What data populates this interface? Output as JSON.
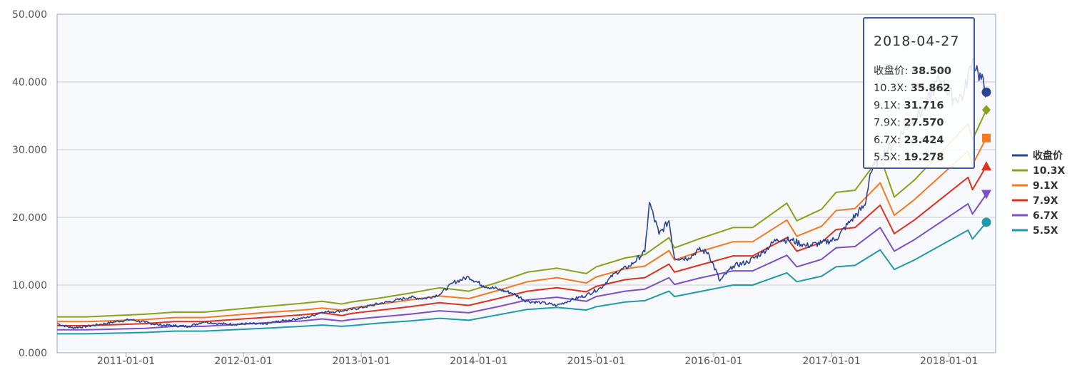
{
  "chart_data": {
    "type": "line",
    "title": "",
    "xlabel": "",
    "ylabel": "",
    "ylim": [
      0,
      50
    ],
    "x_range": [
      "2010-06-01",
      "2018-04-27"
    ],
    "y_ticks": [
      "0.000",
      "10.000",
      "20.000",
      "30.000",
      "40.000",
      "50.000"
    ],
    "x_ticks": [
      {
        "date": "2011-01-01",
        "label": "2011-01-01"
      },
      {
        "date": "2012-01-01",
        "label": "2012-01-01"
      },
      {
        "date": "2013-01-01",
        "label": "2013-01-01"
      },
      {
        "date": "2014-01-01",
        "label": "2014-01-01"
      },
      {
        "date": "2015-01-01",
        "label": "2015-01-01"
      },
      {
        "date": "2016-01-01",
        "label": "2016-01-01"
      },
      {
        "date": "2017-01-01",
        "label": "2017-01-01"
      },
      {
        "date": "2018-01-01",
        "label": "2018-01-01"
      }
    ],
    "grid": true,
    "legend_position": "right",
    "series": [
      {
        "name": "收盘价",
        "color": "#2f4395",
        "marker": "circle",
        "end_value": 38.5,
        "points": [
          [
            "2010-06-01",
            4.3
          ],
          [
            "2010-07-15",
            3.7
          ],
          [
            "2010-09-01",
            3.9
          ],
          [
            "2010-10-15",
            4.2
          ],
          [
            "2010-12-01",
            4.6
          ],
          [
            "2011-01-15",
            4.9
          ],
          [
            "2011-03-01",
            4.5
          ],
          [
            "2011-04-15",
            4.1
          ],
          [
            "2011-06-01",
            4.0
          ],
          [
            "2011-07-15",
            3.9
          ],
          [
            "2011-09-01",
            4.6
          ],
          [
            "2011-10-15",
            4.3
          ],
          [
            "2011-12-01",
            4.2
          ],
          [
            "2012-01-15",
            4.3
          ],
          [
            "2012-03-01",
            4.2
          ],
          [
            "2012-04-15",
            4.6
          ],
          [
            "2012-06-01",
            4.9
          ],
          [
            "2012-07-15",
            5.2
          ],
          [
            "2012-09-01",
            6.0
          ],
          [
            "2012-10-15",
            6.1
          ],
          [
            "2012-12-01",
            6.4
          ],
          [
            "2013-01-15",
            6.8
          ],
          [
            "2013-03-01",
            7.3
          ],
          [
            "2013-04-15",
            7.7
          ],
          [
            "2013-06-01",
            8.2
          ],
          [
            "2013-07-15",
            8.0
          ],
          [
            "2013-09-01",
            8.6
          ],
          [
            "2013-10-15",
            10.4
          ],
          [
            "2013-12-01",
            11.2
          ],
          [
            "2014-01-15",
            9.9
          ],
          [
            "2014-03-01",
            9.4
          ],
          [
            "2014-04-15",
            8.8
          ],
          [
            "2014-06-01",
            7.6
          ],
          [
            "2014-07-15",
            7.4
          ],
          [
            "2014-09-01",
            7.0
          ],
          [
            "2014-10-15",
            7.8
          ],
          [
            "2014-12-01",
            8.5
          ],
          [
            "2015-01-15",
            9.6
          ],
          [
            "2015-03-01",
            11.8
          ],
          [
            "2015-04-15",
            12.8
          ],
          [
            "2015-06-01",
            14.9
          ],
          [
            "2015-06-15",
            22.2
          ],
          [
            "2015-07-15",
            17.5
          ],
          [
            "2015-08-15",
            19.5
          ],
          [
            "2015-09-01",
            14.0
          ],
          [
            "2015-10-15",
            14.0
          ],
          [
            "2015-11-15",
            15.2
          ],
          [
            "2015-12-15",
            14.8
          ],
          [
            "2016-01-20",
            10.6
          ],
          [
            "2016-03-01",
            12.8
          ],
          [
            "2016-04-15",
            13.4
          ],
          [
            "2016-06-01",
            14.8
          ],
          [
            "2016-07-15",
            16.8
          ],
          [
            "2016-09-01",
            16.6
          ],
          [
            "2016-10-15",
            15.8
          ],
          [
            "2016-12-01",
            16.2
          ],
          [
            "2017-01-15",
            16.8
          ],
          [
            "2017-03-01",
            19.5
          ],
          [
            "2017-04-15",
            21.8
          ],
          [
            "2017-05-01",
            26.5
          ],
          [
            "2017-06-01",
            29.0
          ],
          [
            "2017-07-15",
            31.0
          ],
          [
            "2017-09-01",
            34.0
          ],
          [
            "2017-10-15",
            36.0
          ],
          [
            "2017-12-01",
            40.5
          ],
          [
            "2018-01-15",
            37.5
          ],
          [
            "2018-02-15",
            38.0
          ],
          [
            "2018-03-15",
            43.5
          ],
          [
            "2018-04-01",
            41.5
          ],
          [
            "2018-04-27",
            38.5
          ]
        ]
      },
      {
        "name": "10.3X",
        "color": "#86a319",
        "marker": "diamond",
        "end_value": 35.862,
        "points": [
          [
            "2010-06-01",
            5.3
          ],
          [
            "2010-09-01",
            5.3
          ],
          [
            "2011-03-01",
            5.7
          ],
          [
            "2011-06-01",
            6.0
          ],
          [
            "2011-09-01",
            6.0
          ],
          [
            "2012-03-01",
            6.8
          ],
          [
            "2012-07-01",
            7.3
          ],
          [
            "2012-09-01",
            7.6
          ],
          [
            "2012-11-01",
            7.2
          ],
          [
            "2012-12-01",
            7.5
          ],
          [
            "2013-03-01",
            8.1
          ],
          [
            "2013-06-01",
            8.8
          ],
          [
            "2013-09-01",
            9.6
          ],
          [
            "2013-12-01",
            9.1
          ],
          [
            "2014-03-01",
            10.4
          ],
          [
            "2014-06-01",
            11.9
          ],
          [
            "2014-09-01",
            12.5
          ],
          [
            "2014-12-01",
            11.7
          ],
          [
            "2015-01-01",
            12.7
          ],
          [
            "2015-04-01",
            14.0
          ],
          [
            "2015-06-01",
            14.5
          ],
          [
            "2015-08-15",
            17.0
          ],
          [
            "2015-09-01",
            15.5
          ],
          [
            "2015-11-15",
            16.8
          ],
          [
            "2016-03-01",
            18.5
          ],
          [
            "2016-05-01",
            18.5
          ],
          [
            "2016-08-15",
            22.1
          ],
          [
            "2016-09-15",
            19.5
          ],
          [
            "2016-12-01",
            21.2
          ],
          [
            "2017-01-15",
            23.7
          ],
          [
            "2017-03-15",
            24.0
          ],
          [
            "2017-06-01",
            29.0
          ],
          [
            "2017-07-15",
            23.0
          ],
          [
            "2017-09-15",
            25.5
          ],
          [
            "2018-03-01",
            33.8
          ],
          [
            "2018-03-15",
            31.5
          ],
          [
            "2018-04-27",
            35.862
          ]
        ]
      },
      {
        "name": "9.1X",
        "color": "#f7781e",
        "marker": "square",
        "end_value": 31.716,
        "points": [
          [
            "2010-06-01",
            4.6
          ],
          [
            "2010-09-01",
            4.6
          ],
          [
            "2011-03-01",
            4.9
          ],
          [
            "2011-06-01",
            5.2
          ],
          [
            "2011-09-01",
            5.2
          ],
          [
            "2012-03-01",
            5.9
          ],
          [
            "2012-07-01",
            6.3
          ],
          [
            "2012-09-01",
            6.6
          ],
          [
            "2012-11-01",
            6.3
          ],
          [
            "2012-12-01",
            6.6
          ],
          [
            "2013-03-01",
            7.2
          ],
          [
            "2013-06-01",
            7.8
          ],
          [
            "2013-09-01",
            8.4
          ],
          [
            "2013-12-01",
            8.0
          ],
          [
            "2014-03-01",
            9.2
          ],
          [
            "2014-06-01",
            10.5
          ],
          [
            "2014-09-01",
            11.1
          ],
          [
            "2014-12-01",
            10.3
          ],
          [
            "2015-01-01",
            11.2
          ],
          [
            "2015-04-01",
            12.4
          ],
          [
            "2015-06-01",
            12.8
          ],
          [
            "2015-08-15",
            15.1
          ],
          [
            "2015-09-01",
            13.7
          ],
          [
            "2015-11-15",
            14.9
          ],
          [
            "2016-03-01",
            16.4
          ],
          [
            "2016-05-01",
            16.4
          ],
          [
            "2016-08-15",
            19.6
          ],
          [
            "2016-09-15",
            17.2
          ],
          [
            "2016-12-01",
            18.7
          ],
          [
            "2017-01-15",
            21.0
          ],
          [
            "2017-03-15",
            21.3
          ],
          [
            "2017-06-01",
            25.1
          ],
          [
            "2017-07-15",
            20.3
          ],
          [
            "2017-09-15",
            22.6
          ],
          [
            "2018-03-01",
            29.8
          ],
          [
            "2018-03-15",
            27.8
          ],
          [
            "2018-04-27",
            31.716
          ]
        ]
      },
      {
        "name": "7.9X",
        "color": "#e0301e",
        "marker": "triangle",
        "end_value": 27.57,
        "points": [
          [
            "2010-06-01",
            4.0
          ],
          [
            "2010-09-01",
            4.0
          ],
          [
            "2011-03-01",
            4.3
          ],
          [
            "2011-06-01",
            4.6
          ],
          [
            "2011-09-01",
            4.6
          ],
          [
            "2012-03-01",
            5.2
          ],
          [
            "2012-07-01",
            5.6
          ],
          [
            "2012-09-01",
            5.9
          ],
          [
            "2012-11-01",
            5.5
          ],
          [
            "2012-12-01",
            5.8
          ],
          [
            "2013-03-01",
            6.3
          ],
          [
            "2013-06-01",
            6.8
          ],
          [
            "2013-09-01",
            7.4
          ],
          [
            "2013-12-01",
            7.0
          ],
          [
            "2014-03-01",
            8.0
          ],
          [
            "2014-06-01",
            9.1
          ],
          [
            "2014-09-01",
            9.6
          ],
          [
            "2014-12-01",
            9.0
          ],
          [
            "2015-01-01",
            9.8
          ],
          [
            "2015-04-01",
            10.8
          ],
          [
            "2015-06-01",
            11.1
          ],
          [
            "2015-08-15",
            13.1
          ],
          [
            "2015-09-01",
            11.9
          ],
          [
            "2015-11-15",
            12.9
          ],
          [
            "2016-03-01",
            14.3
          ],
          [
            "2016-05-01",
            14.3
          ],
          [
            "2016-08-15",
            17.0
          ],
          [
            "2016-09-15",
            15.0
          ],
          [
            "2016-12-01",
            16.3
          ],
          [
            "2017-01-15",
            18.2
          ],
          [
            "2017-03-15",
            18.5
          ],
          [
            "2017-06-01",
            21.8
          ],
          [
            "2017-07-15",
            17.6
          ],
          [
            "2017-09-15",
            19.6
          ],
          [
            "2018-03-01",
            25.9
          ],
          [
            "2018-03-15",
            24.1
          ],
          [
            "2018-04-27",
            27.57
          ]
        ]
      },
      {
        "name": "6.7X",
        "color": "#7b50c9",
        "marker": "triangle-down",
        "end_value": 23.424,
        "points": [
          [
            "2010-06-01",
            3.4
          ],
          [
            "2010-09-01",
            3.4
          ],
          [
            "2011-03-01",
            3.6
          ],
          [
            "2011-06-01",
            3.9
          ],
          [
            "2011-09-01",
            3.9
          ],
          [
            "2012-03-01",
            4.4
          ],
          [
            "2012-07-01",
            4.7
          ],
          [
            "2012-09-01",
            5.0
          ],
          [
            "2012-11-01",
            4.7
          ],
          [
            "2012-12-01",
            4.9
          ],
          [
            "2013-03-01",
            5.3
          ],
          [
            "2013-06-01",
            5.7
          ],
          [
            "2013-09-01",
            6.2
          ],
          [
            "2013-12-01",
            5.9
          ],
          [
            "2014-03-01",
            6.8
          ],
          [
            "2014-06-01",
            7.8
          ],
          [
            "2014-09-01",
            8.2
          ],
          [
            "2014-12-01",
            7.6
          ],
          [
            "2015-01-01",
            8.3
          ],
          [
            "2015-04-01",
            9.1
          ],
          [
            "2015-06-01",
            9.4
          ],
          [
            "2015-08-15",
            11.1
          ],
          [
            "2015-09-01",
            10.1
          ],
          [
            "2015-11-15",
            11.0
          ],
          [
            "2016-03-01",
            12.1
          ],
          [
            "2016-05-01",
            12.1
          ],
          [
            "2016-08-15",
            14.4
          ],
          [
            "2016-09-15",
            12.7
          ],
          [
            "2016-12-01",
            13.8
          ],
          [
            "2017-01-15",
            15.5
          ],
          [
            "2017-03-15",
            15.7
          ],
          [
            "2017-06-01",
            18.5
          ],
          [
            "2017-07-15",
            15.0
          ],
          [
            "2017-09-15",
            16.7
          ],
          [
            "2018-03-01",
            22.0
          ],
          [
            "2018-03-15",
            20.5
          ],
          [
            "2018-04-27",
            23.424
          ]
        ]
      },
      {
        "name": "5.5X",
        "color": "#1f9aab",
        "marker": "circle",
        "end_value": 19.278,
        "points": [
          [
            "2010-06-01",
            2.8
          ],
          [
            "2010-09-01",
            2.8
          ],
          [
            "2011-03-01",
            3.0
          ],
          [
            "2011-06-01",
            3.2
          ],
          [
            "2011-09-01",
            3.2
          ],
          [
            "2012-03-01",
            3.6
          ],
          [
            "2012-07-01",
            3.9
          ],
          [
            "2012-09-01",
            4.1
          ],
          [
            "2012-11-01",
            3.9
          ],
          [
            "2012-12-01",
            4.0
          ],
          [
            "2013-03-01",
            4.4
          ],
          [
            "2013-06-01",
            4.7
          ],
          [
            "2013-09-01",
            5.1
          ],
          [
            "2013-12-01",
            4.8
          ],
          [
            "2014-03-01",
            5.6
          ],
          [
            "2014-06-01",
            6.4
          ],
          [
            "2014-09-01",
            6.7
          ],
          [
            "2014-12-01",
            6.3
          ],
          [
            "2015-01-01",
            6.8
          ],
          [
            "2015-04-01",
            7.5
          ],
          [
            "2015-06-01",
            7.7
          ],
          [
            "2015-08-15",
            9.1
          ],
          [
            "2015-09-01",
            8.3
          ],
          [
            "2015-11-15",
            9.0
          ],
          [
            "2016-03-01",
            10.0
          ],
          [
            "2016-05-01",
            10.0
          ],
          [
            "2016-08-15",
            11.8
          ],
          [
            "2016-09-15",
            10.5
          ],
          [
            "2016-12-01",
            11.3
          ],
          [
            "2017-01-15",
            12.7
          ],
          [
            "2017-03-15",
            12.9
          ],
          [
            "2017-06-01",
            15.2
          ],
          [
            "2017-07-15",
            12.3
          ],
          [
            "2017-09-15",
            13.7
          ],
          [
            "2018-03-01",
            18.1
          ],
          [
            "2018-03-15",
            16.8
          ],
          [
            "2018-04-27",
            19.278
          ]
        ]
      }
    ],
    "tooltip": {
      "date": "2018-04-27",
      "rows": [
        {
          "label": "收盘价: ",
          "value": "38.500"
        },
        {
          "label": "10.3X: ",
          "value": "35.862"
        },
        {
          "label": "9.1X: ",
          "value": "31.716"
        },
        {
          "label": "7.9X: ",
          "value": "27.570"
        },
        {
          "label": "6.7X: ",
          "value": "23.424"
        },
        {
          "label": "5.5X: ",
          "value": "19.278"
        }
      ]
    }
  }
}
